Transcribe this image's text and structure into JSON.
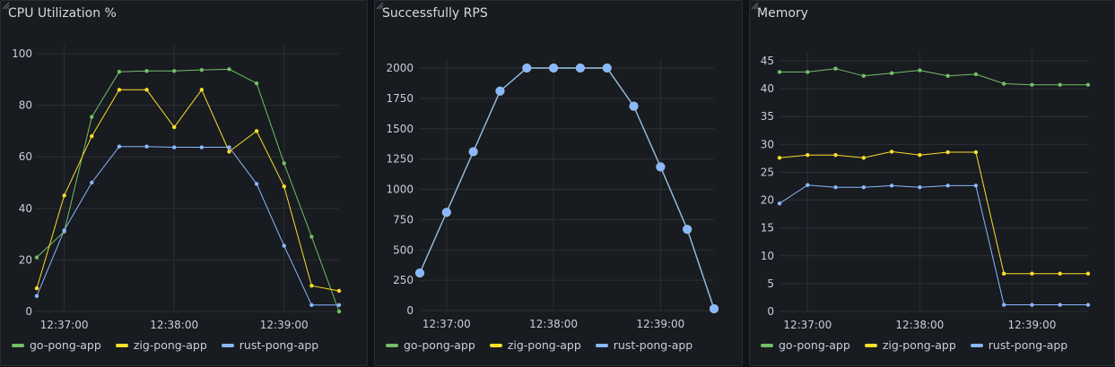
{
  "chart_data": [
    {
      "type": "line",
      "title": "CPU Utilization %",
      "x": [
        "12:36:45",
        "12:37:00",
        "12:37:15",
        "12:37:30",
        "12:37:45",
        "12:38:00",
        "12:38:15",
        "12:38:30",
        "12:38:45",
        "12:39:00",
        "12:39:15",
        "12:39:30"
      ],
      "x_ticks": [
        "12:37:00",
        "12:38:00",
        "12:39:00"
      ],
      "x_tick_index": [
        1,
        5,
        9
      ],
      "ylim": [
        0,
        100
      ],
      "y_ticks": [
        0,
        20,
        40,
        60,
        80,
        100
      ],
      "grid": true,
      "legend": "bottom-left",
      "series": [
        {
          "name": "go-pong-app",
          "color": "#73bf69",
          "values": [
            21,
            31,
            75.5,
            93,
            93.3,
            93.3,
            93.7,
            94,
            88.5,
            57.5,
            29,
            0
          ]
        },
        {
          "name": "zig-pong-app",
          "color": "#fade2a",
          "values": [
            9,
            45,
            68,
            86,
            86,
            71.5,
            86,
            62,
            70,
            48.5,
            10,
            8
          ]
        },
        {
          "name": "rust-pong-app",
          "color": "#8ab8ff",
          "values": [
            6,
            31.5,
            50,
            64,
            64,
            63.7,
            63.7,
            63.7,
            49.5,
            25.5,
            2.5,
            2.5
          ]
        }
      ]
    },
    {
      "type": "line",
      "title": "Successfully RPS",
      "x": [
        "12:36:45",
        "12:37:00",
        "12:37:15",
        "12:37:30",
        "12:37:45",
        "12:38:00",
        "12:38:15",
        "12:38:30",
        "12:38:45",
        "12:39:00",
        "12:39:15",
        "12:39:30"
      ],
      "x_ticks": [
        "12:37:00",
        "12:38:00",
        "12:39:00"
      ],
      "x_tick_index": [
        1,
        5,
        9
      ],
      "ylim": [
        0,
        2000
      ],
      "y_ticks": [
        0,
        250,
        500,
        750,
        1000,
        1250,
        1500,
        1750,
        2000
      ],
      "grid": true,
      "legend": "bottom-left",
      "series": [
        {
          "name": "go-pong-app",
          "color": "#73bf69",
          "values": [
            310,
            810,
            1310,
            1810,
            2000,
            2000,
            2000,
            2000,
            1685,
            1185,
            670,
            15
          ]
        },
        {
          "name": "zig-pong-app",
          "color": "#fade2a",
          "values": [
            310,
            810,
            1310,
            1810,
            2000,
            2000,
            2000,
            2000,
            1685,
            1185,
            670,
            15
          ]
        },
        {
          "name": "rust-pong-app",
          "color": "#8ab8ff",
          "values": [
            310,
            810,
            1310,
            1810,
            2000,
            2000,
            2000,
            2000,
            1685,
            1185,
            670,
            15
          ]
        }
      ]
    },
    {
      "type": "line",
      "title": "Memory",
      "x": [
        "12:36:45",
        "12:37:00",
        "12:37:15",
        "12:37:30",
        "12:37:45",
        "12:38:00",
        "12:38:15",
        "12:38:30",
        "12:38:45",
        "12:39:00",
        "12:39:15",
        "12:39:30"
      ],
      "x_ticks": [
        "12:37:00",
        "12:38:00",
        "12:39:00"
      ],
      "x_tick_index": [
        1,
        5,
        9
      ],
      "ylim": [
        0,
        45
      ],
      "y_ticks": [
        0,
        5,
        10,
        15,
        20,
        25,
        30,
        35,
        40,
        45
      ],
      "grid": true,
      "legend": "bottom-left",
      "series": [
        {
          "name": "go-pong-app",
          "color": "#73bf69",
          "values": [
            43,
            43,
            43.6,
            42.3,
            42.8,
            43.3,
            42.3,
            42.6,
            40.9,
            40.7,
            40.7,
            40.7
          ]
        },
        {
          "name": "zig-pong-app",
          "color": "#fade2a",
          "values": [
            27.6,
            28.1,
            28.1,
            27.6,
            28.7,
            28.1,
            28.6,
            28.6,
            6.8,
            6.8,
            6.8,
            6.8
          ]
        },
        {
          "name": "rust-pong-app",
          "color": "#8ab8ff",
          "values": [
            19.4,
            22.7,
            22.3,
            22.3,
            22.6,
            22.3,
            22.6,
            22.6,
            1.2,
            1.2,
            1.2,
            1.2
          ]
        }
      ]
    }
  ]
}
